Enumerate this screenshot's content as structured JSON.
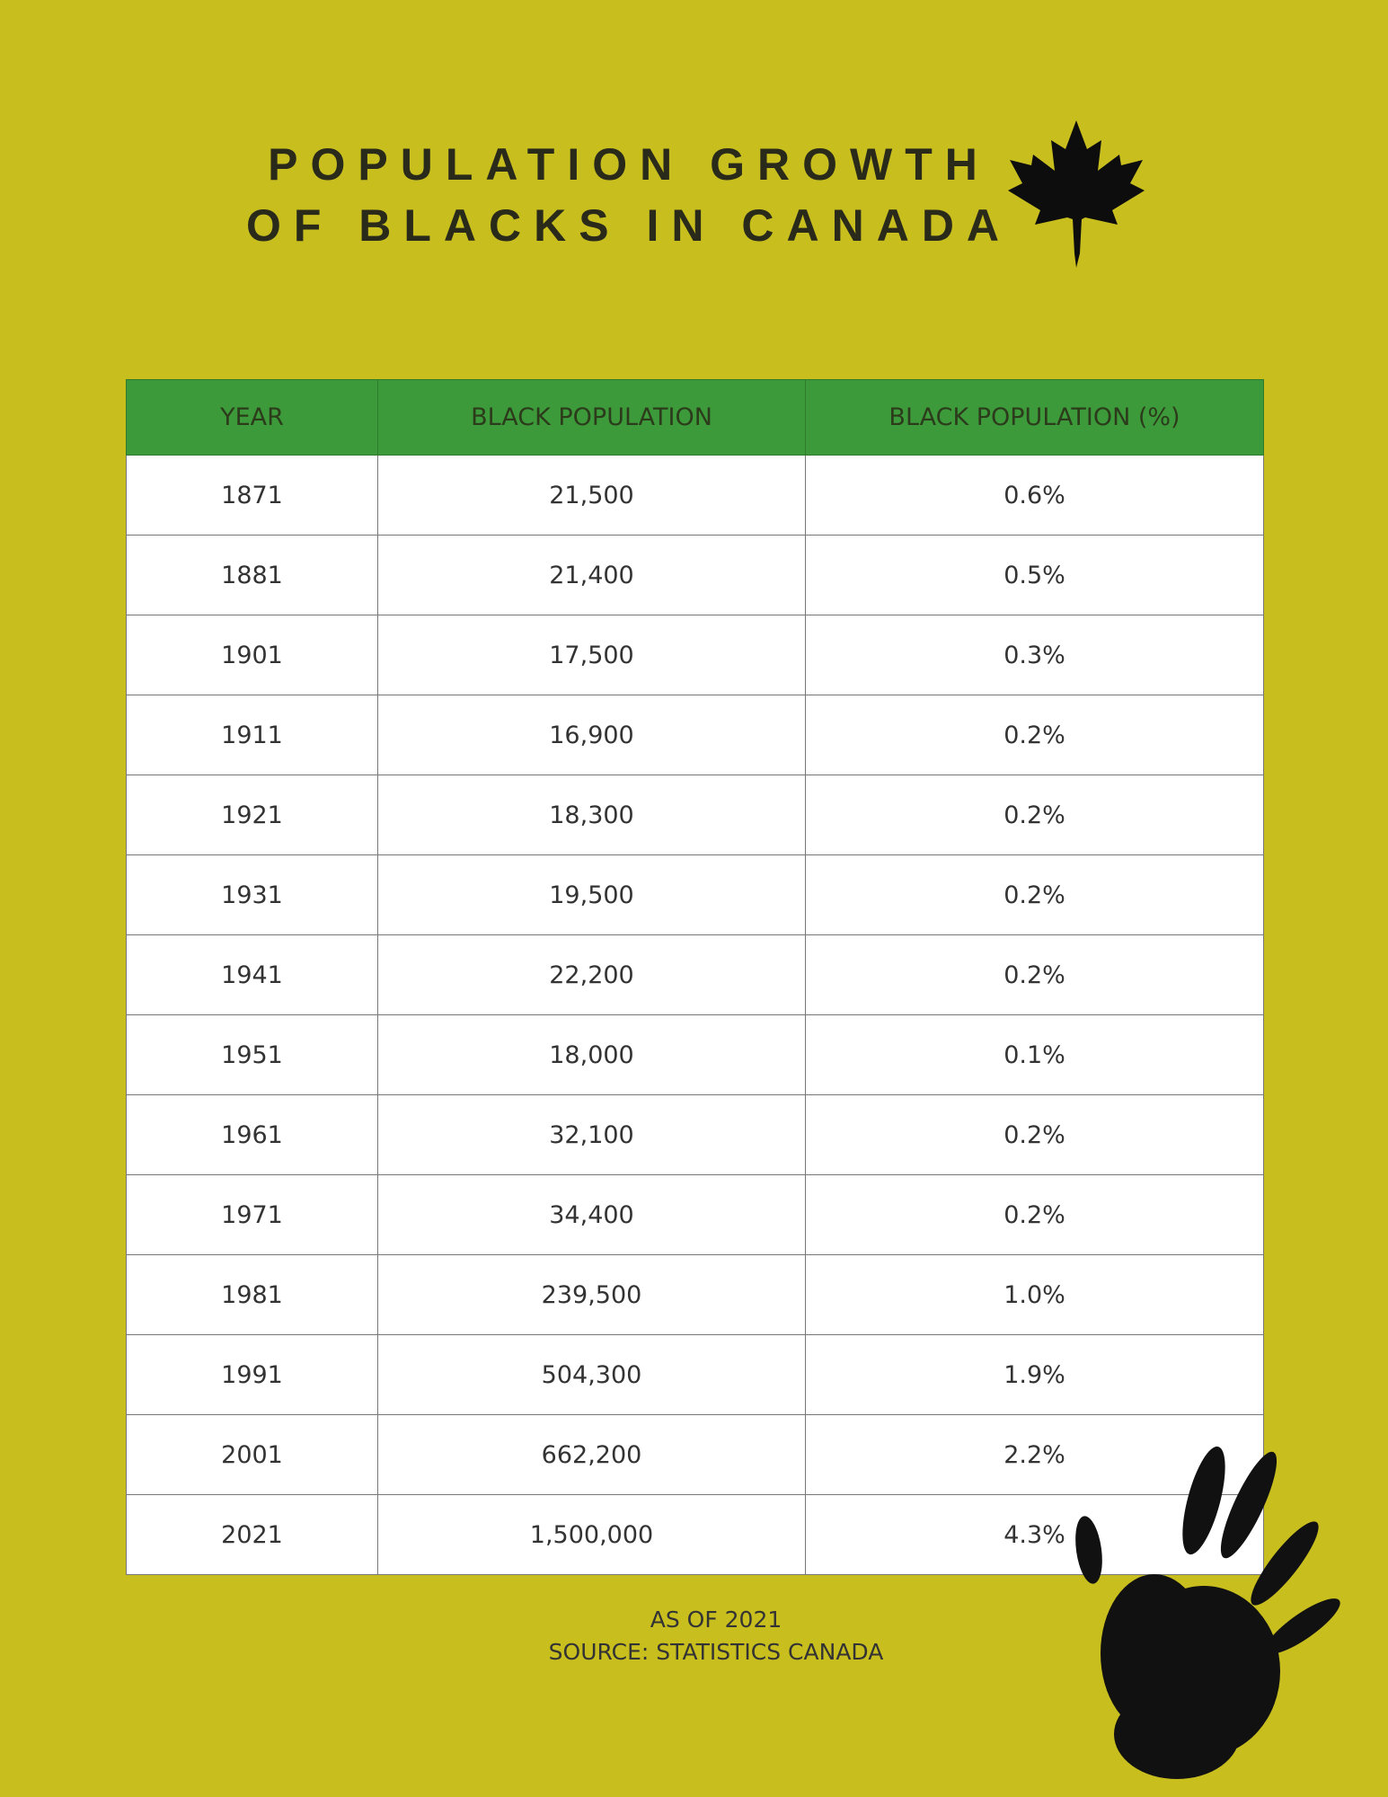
{
  "header": {
    "title_lines": [
      "POPULATION GROWTH",
      "OF BLACKS IN CANADA"
    ]
  },
  "table": {
    "columns": [
      "YEAR",
      "BLACK POPULATION",
      "BLACK POPULATION (%)"
    ],
    "rows": [
      [
        "1871",
        "21,500",
        "0.6%"
      ],
      [
        "1881",
        "21,400",
        "0.5%"
      ],
      [
        "1901",
        "17,500",
        "0.3%"
      ],
      [
        "1911",
        "16,900",
        "0.2%"
      ],
      [
        "1921",
        "18,300",
        "0.2%"
      ],
      [
        "1931",
        "19,500",
        "0.2%"
      ],
      [
        "1941",
        "22,200",
        "0.2%"
      ],
      [
        "1951",
        "18,000",
        "0.1%"
      ],
      [
        "1961",
        "32,100",
        "0.2%"
      ],
      [
        "1971",
        "34,400",
        "0.2%"
      ],
      [
        "1981",
        "239,500",
        "1.0%"
      ],
      [
        "1991",
        "504,300",
        "1.9%"
      ],
      [
        "2001",
        "662,200",
        "2.2%"
      ],
      [
        "2021",
        "1,500,000",
        "4.3%"
      ]
    ]
  },
  "footer": {
    "lines": [
      "AS OF 2021",
      "SOURCE: STATISTICS CANADA"
    ]
  }
}
